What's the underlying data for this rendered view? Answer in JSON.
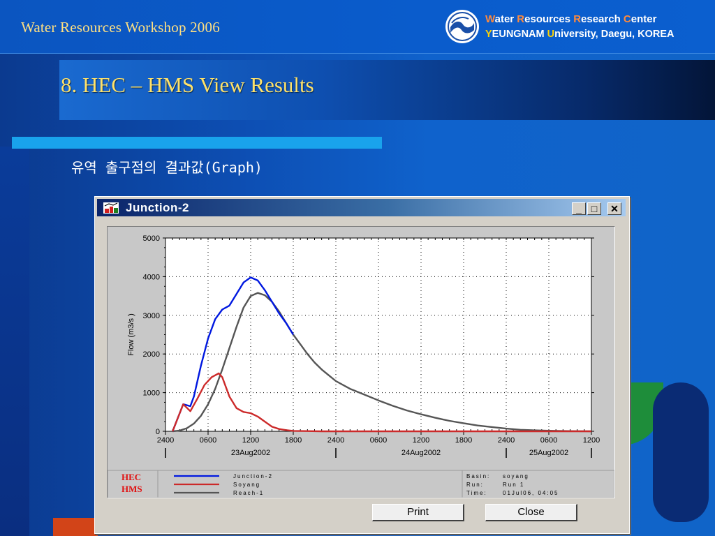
{
  "slide": {
    "workshop": "Water Resources Workshop 2006",
    "center_line1": [
      "W",
      "ater ",
      "R",
      "esources ",
      "R",
      "esearch ",
      "C",
      "enter"
    ],
    "center_line2": [
      "Y",
      "EUNGNAM ",
      "U",
      "niversity, Daegu, KOREA"
    ],
    "title": "8. HEC – HMS View Results",
    "subtitle": "유역 출구점의 결과값(Graph)"
  },
  "window": {
    "title": "Junction-2",
    "minimize": "_",
    "maximize": "□",
    "close": "✕",
    "print_label": "Print",
    "close_label": "Close"
  },
  "legend": {
    "logo_line1": "HEC",
    "logo_line2": "HMS",
    "info": [
      {
        "label": "Basin:",
        "value": "soyang"
      },
      {
        "label": "Run:",
        "value": "Run 1"
      },
      {
        "label": "Time:",
        "value": "01Jul06, 04:05"
      }
    ]
  },
  "chart_data": {
    "type": "line",
    "ylabel": "Flow (m3/s  )",
    "ylim": [
      0,
      5000
    ],
    "yticks": [
      0,
      1000,
      2000,
      3000,
      4000,
      5000
    ],
    "xlim": [
      0,
      60
    ],
    "xticks": [
      {
        "x": 0,
        "label": "2400"
      },
      {
        "x": 6,
        "label": "0600"
      },
      {
        "x": 12,
        "label": "1200"
      },
      {
        "x": 18,
        "label": "1800"
      },
      {
        "x": 24,
        "label": "2400"
      },
      {
        "x": 30,
        "label": "0600"
      },
      {
        "x": 36,
        "label": "1200"
      },
      {
        "x": 42,
        "label": "1800"
      },
      {
        "x": 48,
        "label": "2400"
      },
      {
        "x": 54,
        "label": "0600"
      },
      {
        "x": 60,
        "label": "1200"
      }
    ],
    "date_labels": [
      {
        "x": 12,
        "label": "23Aug2002"
      },
      {
        "x": 36,
        "label": "24Aug2002"
      },
      {
        "x": 54,
        "label": "25Aug2002"
      }
    ],
    "date_dividers": [
      0,
      24,
      48,
      60
    ],
    "grid": true,
    "series": [
      {
        "name": "Junction-2",
        "color": "#0018e0",
        "x": [
          1,
          2.5,
          3.5,
          4,
          5,
          6,
          7,
          8,
          9,
          10,
          11,
          12,
          13,
          14,
          15,
          16,
          17,
          18
        ],
        "y": [
          0,
          700,
          650,
          900,
          1700,
          2400,
          2900,
          3150,
          3250,
          3550,
          3850,
          3980,
          3900,
          3650,
          3350,
          3050,
          2800,
          2500
        ]
      },
      {
        "name": "Soyang",
        "color": "#cc2a2a",
        "x": [
          1,
          2.5,
          3.5,
          4.5,
          5.5,
          6.5,
          7.5,
          8,
          9,
          10,
          11,
          12,
          13,
          14,
          15,
          16,
          17,
          18,
          20,
          22,
          24,
          30,
          40,
          60
        ],
        "y": [
          0,
          700,
          520,
          850,
          1200,
          1400,
          1500,
          1400,
          900,
          600,
          500,
          470,
          380,
          250,
          120,
          60,
          30,
          10,
          5,
          0,
          0,
          0,
          0,
          0
        ]
      },
      {
        "name": "Reach-1",
        "color": "#555555",
        "x": [
          1,
          2,
          3,
          4,
          5,
          6,
          7,
          8,
          9,
          10,
          11,
          12,
          13,
          14,
          15,
          16,
          17,
          18,
          19,
          20,
          21,
          22,
          23,
          24,
          26,
          28,
          30,
          32,
          34,
          36,
          38,
          40,
          42,
          44,
          46,
          48,
          50,
          52,
          54,
          56,
          58,
          60
        ],
        "y": [
          0,
          20,
          80,
          200,
          400,
          700,
          1100,
          1600,
          2150,
          2700,
          3200,
          3500,
          3580,
          3520,
          3350,
          3100,
          2800,
          2500,
          2250,
          2000,
          1780,
          1600,
          1450,
          1300,
          1100,
          950,
          800,
          660,
          540,
          440,
          350,
          270,
          210,
          150,
          110,
          70,
          40,
          25,
          15,
          8,
          4,
          2
        ]
      }
    ]
  }
}
